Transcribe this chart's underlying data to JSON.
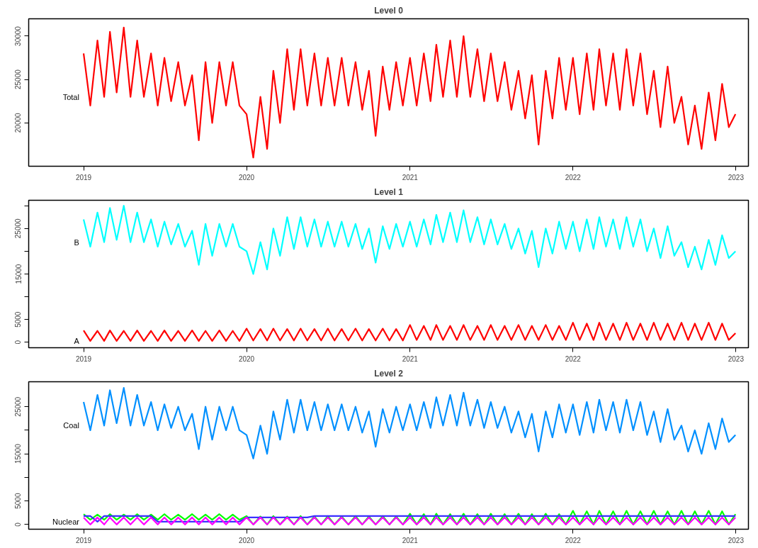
{
  "chart_data": [
    {
      "type": "line",
      "title": "Level 0",
      "xlim": [
        "2018-08-31",
        "2023-01-29"
      ],
      "ylim": [
        15000,
        32000
      ],
      "xticks": [
        {
          "value": "2019-01-01",
          "label": "2019"
        },
        {
          "value": "2020-01-01",
          "label": "2020"
        },
        {
          "value": "2021-01-01",
          "label": "2021"
        },
        {
          "value": "2022-01-01",
          "label": "2022"
        },
        {
          "value": "2023-01-01",
          "label": "2023"
        }
      ],
      "yticks": [
        20000,
        25000,
        30000
      ],
      "x": [
        "2019-01-01",
        "2019-01-16",
        "2019-02-01",
        "2019-02-16",
        "2019-03-01",
        "2019-03-16",
        "2019-04-01",
        "2019-04-16",
        "2019-05-01",
        "2019-05-16",
        "2019-06-01",
        "2019-06-16",
        "2019-07-01",
        "2019-07-16",
        "2019-08-01",
        "2019-08-16",
        "2019-09-01",
        "2019-09-16",
        "2019-10-01",
        "2019-10-16",
        "2019-11-01",
        "2019-11-16",
        "2019-12-01",
        "2019-12-16",
        "2020-01-01",
        "2020-01-16",
        "2020-02-01",
        "2020-02-16",
        "2020-03-01",
        "2020-03-16",
        "2020-04-01",
        "2020-04-16",
        "2020-05-01",
        "2020-05-16",
        "2020-06-01",
        "2020-06-16",
        "2020-07-01",
        "2020-07-16",
        "2020-08-01",
        "2020-08-16",
        "2020-09-01",
        "2020-09-16",
        "2020-10-01",
        "2020-10-16",
        "2020-11-01",
        "2020-11-16",
        "2020-12-01",
        "2020-12-16",
        "2021-01-01",
        "2021-01-16",
        "2021-02-01",
        "2021-02-16",
        "2021-03-01",
        "2021-03-16",
        "2021-04-01",
        "2021-04-16",
        "2021-05-01",
        "2021-05-16",
        "2021-06-01",
        "2021-06-16",
        "2021-07-01",
        "2021-07-16",
        "2021-08-01",
        "2021-08-16",
        "2021-09-01",
        "2021-09-16",
        "2021-10-01",
        "2021-10-16",
        "2021-11-01",
        "2021-11-16",
        "2021-12-01",
        "2021-12-16",
        "2022-01-01",
        "2022-01-16",
        "2022-02-01",
        "2022-02-16",
        "2022-03-01",
        "2022-03-16",
        "2022-04-01",
        "2022-04-16",
        "2022-05-01",
        "2022-05-16",
        "2022-06-01",
        "2022-06-16",
        "2022-07-01",
        "2022-07-16",
        "2022-08-01",
        "2022-08-16",
        "2022-09-01",
        "2022-09-16",
        "2022-10-01",
        "2022-10-16",
        "2022-11-01",
        "2022-11-16",
        "2022-12-01",
        "2022-12-16",
        "2022-12-31"
      ],
      "series": [
        {
          "name": "Total",
          "color": "#ff0000",
          "values": [
            28000,
            22000,
            29500,
            23000,
            30500,
            23500,
            31000,
            23000,
            29500,
            23000,
            28000,
            22000,
            27500,
            22500,
            27000,
            22000,
            25500,
            18000,
            27000,
            20000,
            27000,
            22000,
            27000,
            22000,
            21000,
            16000,
            23000,
            17000,
            26000,
            20000,
            28500,
            21500,
            28500,
            22000,
            28000,
            22000,
            27500,
            22000,
            27500,
            22000,
            27000,
            21500,
            26000,
            18500,
            26500,
            21500,
            27000,
            22000,
            27500,
            22000,
            28000,
            22500,
            29000,
            23000,
            29500,
            23000,
            30000,
            23000,
            28500,
            22500,
            28000,
            22500,
            27000,
            21500,
            26000,
            20500,
            25500,
            17500,
            26000,
            20500,
            27500,
            21500,
            27500,
            21000,
            28000,
            21500,
            28500,
            22000,
            28000,
            21500,
            28500,
            22000,
            28000,
            21000,
            26000,
            19500,
            26500,
            20000,
            23000,
            17500,
            22000,
            17000,
            23500,
            18000,
            24500,
            19500,
            21000
          ]
        }
      ]
    },
    {
      "type": "line",
      "title": "Level 1",
      "xlim": [
        "2018-08-31",
        "2023-01-29"
      ],
      "ylim": [
        -1200,
        31200
      ],
      "xticks": [
        {
          "value": "2019-01-01",
          "label": "2019"
        },
        {
          "value": "2020-01-01",
          "label": "2020"
        },
        {
          "value": "2021-01-01",
          "label": "2021"
        },
        {
          "value": "2022-01-01",
          "label": "2022"
        },
        {
          "value": "2023-01-01",
          "label": "2023"
        }
      ],
      "yticks": [
        0,
        5000,
        {
          "value": 10000,
          "label": null
        },
        15000,
        {
          "value": 20000,
          "label": null
        },
        25000,
        {
          "value": 30000,
          "label": null
        }
      ],
      "x": [
        "2019-01-01",
        "2019-01-16",
        "2019-02-01",
        "2019-02-16",
        "2019-03-01",
        "2019-03-16",
        "2019-04-01",
        "2019-04-16",
        "2019-05-01",
        "2019-05-16",
        "2019-06-01",
        "2019-06-16",
        "2019-07-01",
        "2019-07-16",
        "2019-08-01",
        "2019-08-16",
        "2019-09-01",
        "2019-09-16",
        "2019-10-01",
        "2019-10-16",
        "2019-11-01",
        "2019-11-16",
        "2019-12-01",
        "2019-12-16",
        "2020-01-01",
        "2020-01-16",
        "2020-02-01",
        "2020-02-16",
        "2020-03-01",
        "2020-03-16",
        "2020-04-01",
        "2020-04-16",
        "2020-05-01",
        "2020-05-16",
        "2020-06-01",
        "2020-06-16",
        "2020-07-01",
        "2020-07-16",
        "2020-08-01",
        "2020-08-16",
        "2020-09-01",
        "2020-09-16",
        "2020-10-01",
        "2020-10-16",
        "2020-11-01",
        "2020-11-16",
        "2020-12-01",
        "2020-12-16",
        "2021-01-01",
        "2021-01-16",
        "2021-02-01",
        "2021-02-16",
        "2021-03-01",
        "2021-03-16",
        "2021-04-01",
        "2021-04-16",
        "2021-05-01",
        "2021-05-16",
        "2021-06-01",
        "2021-06-16",
        "2021-07-01",
        "2021-07-16",
        "2021-08-01",
        "2021-08-16",
        "2021-09-01",
        "2021-09-16",
        "2021-10-01",
        "2021-10-16",
        "2021-11-01",
        "2021-11-16",
        "2021-12-01",
        "2021-12-16",
        "2022-01-01",
        "2022-01-16",
        "2022-02-01",
        "2022-02-16",
        "2022-03-01",
        "2022-03-16",
        "2022-04-01",
        "2022-04-16",
        "2022-05-01",
        "2022-05-16",
        "2022-06-01",
        "2022-06-16",
        "2022-07-01",
        "2022-07-16",
        "2022-08-01",
        "2022-08-16",
        "2022-09-01",
        "2022-09-16",
        "2022-10-01",
        "2022-10-16",
        "2022-11-01",
        "2022-11-16",
        "2022-12-01",
        "2022-12-16",
        "2022-12-31"
      ],
      "series": [
        {
          "name": "A",
          "color": "#ff0000",
          "values": [
            2600,
            300,
            2500,
            300,
            2600,
            300,
            2500,
            300,
            2600,
            300,
            2500,
            300,
            2600,
            300,
            2500,
            300,
            2600,
            300,
            2500,
            300,
            2600,
            300,
            2500,
            300,
            3000,
            400,
            2900,
            400,
            3000,
            400,
            2900,
            400,
            3000,
            400,
            2900,
            400,
            3000,
            400,
            2900,
            400,
            3000,
            400,
            2900,
            400,
            3000,
            400,
            2900,
            400,
            3800,
            500,
            3600,
            500,
            3800,
            500,
            3600,
            500,
            3800,
            500,
            3600,
            500,
            3800,
            500,
            3600,
            500,
            3800,
            500,
            3600,
            500,
            3800,
            500,
            3600,
            500,
            4300,
            500,
            4100,
            500,
            4300,
            500,
            4100,
            500,
            4300,
            500,
            4100,
            500,
            4300,
            500,
            4100,
            500,
            4300,
            500,
            4100,
            500,
            4300,
            500,
            4100,
            500,
            2000
          ]
        },
        {
          "name": "B",
          "color": "#00ffff",
          "values": [
            27000,
            21000,
            28500,
            22000,
            29500,
            22500,
            30000,
            22000,
            28500,
            22000,
            27000,
            21000,
            26500,
            21500,
            26000,
            21000,
            24500,
            17000,
            26000,
            19000,
            26000,
            21000,
            26000,
            21000,
            20000,
            15000,
            22000,
            16000,
            25000,
            19000,
            27500,
            20500,
            27500,
            21000,
            27000,
            21000,
            26500,
            21000,
            26500,
            21000,
            26000,
            20500,
            25000,
            17500,
            25500,
            20500,
            26000,
            21000,
            26500,
            21000,
            27000,
            21500,
            28000,
            22000,
            28500,
            22000,
            29000,
            22000,
            27500,
            21500,
            27000,
            21500,
            26000,
            20500,
            25000,
            19500,
            24500,
            16500,
            25000,
            19500,
            26500,
            20500,
            26500,
            20000,
            27000,
            20500,
            27500,
            21000,
            27000,
            20500,
            27500,
            21000,
            27000,
            20000,
            25000,
            18500,
            25500,
            19000,
            22000,
            16500,
            21000,
            16000,
            22500,
            17000,
            23500,
            18500,
            20000
          ]
        }
      ]
    },
    {
      "type": "line",
      "title": "Level 2",
      "xlim": [
        "2018-08-31",
        "2023-01-29"
      ],
      "ylim": [
        -1000,
        30300
      ],
      "xticks": [
        {
          "value": "2019-01-01",
          "label": "2019"
        },
        {
          "value": "2020-01-01",
          "label": "2020"
        },
        {
          "value": "2021-01-01",
          "label": "2021"
        },
        {
          "value": "2022-01-01",
          "label": "2022"
        },
        {
          "value": "2023-01-01",
          "label": "2023"
        }
      ],
      "yticks": [
        0,
        5000,
        {
          "value": 10000,
          "label": null
        },
        15000,
        {
          "value": 20000,
          "label": null
        },
        25000
      ],
      "x": [
        "2019-01-01",
        "2019-01-16",
        "2019-02-01",
        "2019-02-16",
        "2019-03-01",
        "2019-03-16",
        "2019-04-01",
        "2019-04-16",
        "2019-05-01",
        "2019-05-16",
        "2019-06-01",
        "2019-06-16",
        "2019-07-01",
        "2019-07-16",
        "2019-08-01",
        "2019-08-16",
        "2019-09-01",
        "2019-09-16",
        "2019-10-01",
        "2019-10-16",
        "2019-11-01",
        "2019-11-16",
        "2019-12-01",
        "2019-12-16",
        "2020-01-01",
        "2020-01-16",
        "2020-02-01",
        "2020-02-16",
        "2020-03-01",
        "2020-03-16",
        "2020-04-01",
        "2020-04-16",
        "2020-05-01",
        "2020-05-16",
        "2020-06-01",
        "2020-06-16",
        "2020-07-01",
        "2020-07-16",
        "2020-08-01",
        "2020-08-16",
        "2020-09-01",
        "2020-09-16",
        "2020-10-01",
        "2020-10-16",
        "2020-11-01",
        "2020-11-16",
        "2020-12-01",
        "2020-12-16",
        "2021-01-01",
        "2021-01-16",
        "2021-02-01",
        "2021-02-16",
        "2021-03-01",
        "2021-03-16",
        "2021-04-01",
        "2021-04-16",
        "2021-05-01",
        "2021-05-16",
        "2021-06-01",
        "2021-06-16",
        "2021-07-01",
        "2021-07-16",
        "2021-08-01",
        "2021-08-16",
        "2021-09-01",
        "2021-09-16",
        "2021-10-01",
        "2021-10-16",
        "2021-11-01",
        "2021-11-16",
        "2021-12-01",
        "2021-12-16",
        "2022-01-01",
        "2022-01-16",
        "2022-02-01",
        "2022-02-16",
        "2022-03-01",
        "2022-03-16",
        "2022-04-01",
        "2022-04-16",
        "2022-05-01",
        "2022-05-16",
        "2022-06-01",
        "2022-06-16",
        "2022-07-01",
        "2022-07-16",
        "2022-08-01",
        "2022-08-16",
        "2022-09-01",
        "2022-09-16",
        "2022-10-01",
        "2022-10-16",
        "2022-11-01",
        "2022-11-16",
        "2022-12-01",
        "2022-12-16",
        "2022-12-31"
      ],
      "series": [
        {
          "color": "#00ff00",
          "values": [
            2200,
            1000,
            2100,
            1000,
            2200,
            1000,
            2100,
            1000,
            2200,
            1000,
            2100,
            1000,
            2200,
            1000,
            2100,
            1000,
            2200,
            1000,
            2100,
            1000,
            2200,
            1000,
            2100,
            1000,
            1800,
            0,
            1700,
            0,
            1800,
            0,
            1700,
            0,
            1800,
            0,
            1700,
            0,
            1800,
            0,
            1700,
            0,
            1800,
            0,
            1700,
            0,
            1800,
            0,
            1700,
            0,
            2300,
            0,
            2200,
            0,
            2300,
            0,
            2200,
            0,
            2300,
            0,
            2200,
            0,
            2300,
            0,
            2200,
            0,
            2300,
            0,
            2200,
            0,
            2300,
            0,
            2200,
            0,
            2900,
            0,
            2800,
            0,
            2900,
            0,
            2800,
            0,
            2900,
            0,
            2800,
            0,
            2900,
            0,
            2800,
            0,
            2900,
            0,
            2800,
            0,
            2900,
            0,
            2800,
            0,
            2200
          ]
        },
        {
          "name": "Nuclear",
          "color": "#3b30ff",
          "values": [
            1800,
            1800,
            600,
            1800,
            1800,
            1800,
            1800,
            1800,
            1800,
            1800,
            1800,
            600,
            600,
            600,
            600,
            600,
            600,
            600,
            600,
            600,
            600,
            600,
            600,
            600,
            1500,
            1500,
            1500,
            1500,
            1500,
            1500,
            1500,
            1500,
            1500,
            1500,
            1800,
            1800,
            1800,
            1800,
            1800,
            1800,
            1800,
            1800,
            1800,
            1800,
            1800,
            1800,
            1800,
            1800,
            1800,
            1800,
            1800,
            1800,
            1800,
            1800,
            1800,
            1800,
            1800,
            1800,
            1800,
            1800,
            1800,
            1800,
            1800,
            1800,
            1800,
            1800,
            1800,
            1800,
            1800,
            1800,
            1800,
            1800,
            1800,
            1800,
            1800,
            1800,
            1800,
            1800,
            1800,
            1800,
            1800,
            1800,
            1800,
            1800,
            1800,
            1800,
            1800,
            1800,
            1800,
            1800,
            1800,
            1800,
            1800,
            1800,
            1800,
            1800,
            1800
          ]
        },
        {
          "color": "#ff00ff",
          "values": [
            1500,
            0,
            1500,
            0,
            1500,
            0,
            1500,
            0,
            1500,
            0,
            1500,
            0,
            1500,
            0,
            1500,
            0,
            1500,
            0,
            1500,
            0,
            1500,
            0,
            1500,
            0,
            1500,
            0,
            1500,
            0,
            1500,
            0,
            1500,
            0,
            1500,
            0,
            1500,
            0,
            1500,
            0,
            1500,
            0,
            1500,
            0,
            1500,
            0,
            1500,
            0,
            1500,
            0,
            1500,
            0,
            1500,
            0,
            1500,
            0,
            1500,
            0,
            1500,
            0,
            1500,
            0,
            1500,
            0,
            1500,
            0,
            1500,
            0,
            1500,
            0,
            1500,
            0,
            1500,
            0,
            1500,
            0,
            1500,
            0,
            1500,
            0,
            1500,
            0,
            1500,
            0,
            1500,
            0,
            1500,
            0,
            1500,
            0,
            1500,
            0,
            1500,
            0,
            1500,
            0,
            1500,
            0,
            1500
          ]
        },
        {
          "name": "Coal",
          "color": "#0090ff",
          "values": [
            26000,
            20000,
            27500,
            21000,
            28500,
            21500,
            29000,
            21000,
            27500,
            21000,
            26000,
            20000,
            25500,
            20500,
            25000,
            20000,
            23500,
            16000,
            25000,
            18000,
            25000,
            20000,
            25000,
            20000,
            19000,
            14000,
            21000,
            15000,
            24000,
            18000,
            26500,
            19500,
            26500,
            20000,
            26000,
            20000,
            25500,
            20000,
            25500,
            20000,
            25000,
            19500,
            24000,
            16500,
            24500,
            19500,
            25000,
            20000,
            25500,
            20000,
            26000,
            20500,
            27000,
            21000,
            27500,
            21000,
            28000,
            21000,
            26500,
            20500,
            26000,
            20500,
            25000,
            19500,
            24000,
            18500,
            23500,
            15500,
            24000,
            18500,
            25500,
            19500,
            25500,
            19000,
            26000,
            19500,
            26500,
            20000,
            26000,
            19500,
            26500,
            20000,
            26000,
            19000,
            24000,
            17500,
            24500,
            18000,
            21000,
            15500,
            20000,
            15000,
            21500,
            16000,
            22500,
            17500,
            19000
          ]
        }
      ]
    }
  ]
}
